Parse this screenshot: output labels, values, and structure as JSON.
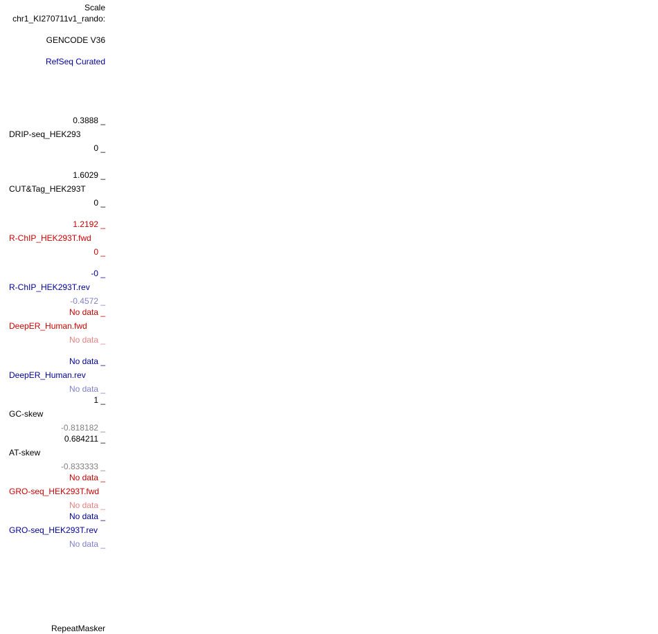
{
  "colors": {
    "black": "#000000",
    "red": "#cc0000",
    "red_light": "#e88080",
    "blue": "#000099",
    "blue_light": "#8080cc",
    "grey": "#808080"
  },
  "header": {
    "scale": "Scale",
    "chrom": "chr1_KI270711v1_rando:"
  },
  "tracks": {
    "gencode": {
      "label": "GENCODE V36"
    },
    "refseq": {
      "label": "RefSeq Curated"
    },
    "drip": {
      "max": "0.3888 _",
      "name": "DRIP-seq_HEK293",
      "min": "0 _"
    },
    "cuttag": {
      "max": "1.6029 _",
      "name": "CUT&Tag_HEK293T",
      "min": "0 _"
    },
    "rchip_fwd": {
      "max": "1.2192 _",
      "name": "R-ChIP_HEK293T.fwd",
      "min": "0 _"
    },
    "rchip_rev": {
      "max": "-0 _",
      "name": "R-ChIP_HEK293T.rev",
      "min": "-0.4572 _"
    },
    "deeper_fwd": {
      "max": "No data _",
      "name": "DeepER_Human.fwd",
      "min": "No data _"
    },
    "deeper_rev": {
      "max": "No data _",
      "name": "DeepER_Human.rev",
      "min": "No data _"
    },
    "gc_skew": {
      "max": "1 _",
      "name": "GC-skew",
      "min": "-0.818182 _"
    },
    "at_skew": {
      "max": "0.684211 _",
      "name": "AT-skew",
      "min": "-0.833333 _"
    },
    "gro_fwd": {
      "max": "No data _",
      "name": "GRO-seq_HEK293T.fwd",
      "min": "No data _"
    },
    "gro_rev": {
      "max": "No data _",
      "name": "GRO-seq_HEK293T.rev",
      "min": "No data _"
    },
    "repeatmasker": {
      "label": "RepeatMasker"
    }
  }
}
